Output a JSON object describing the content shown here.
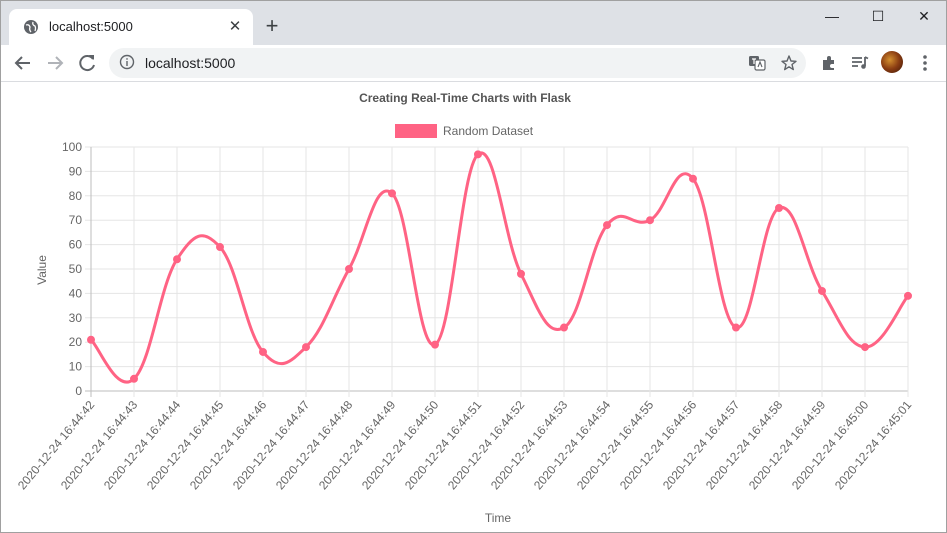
{
  "browser": {
    "tab_title": "localhost:5000",
    "tab_close_glyph": "✕",
    "new_tab_glyph": "+",
    "url": "localhost:5000",
    "window_controls": {
      "minimize": "—",
      "maximize": "☐",
      "close": "✕"
    },
    "icons": [
      "globe-icon",
      "close-icon",
      "plus-icon",
      "back-icon",
      "forward-icon",
      "reload-icon",
      "info-icon",
      "translate-icon",
      "star-icon",
      "extensions-icon",
      "media-queue-icon",
      "avatar",
      "menu-icon"
    ]
  },
  "colors": {
    "series": "#ff6384",
    "grid": "#e5e5e5",
    "text": "#666666",
    "title": "#555555"
  },
  "chart_data": {
    "type": "line",
    "title": "Creating Real-Time Charts with Flask",
    "xlabel": "Time",
    "ylabel": "Value",
    "ylim": [
      0,
      100
    ],
    "yticks": [
      0,
      10,
      20,
      30,
      40,
      50,
      60,
      70,
      80,
      90,
      100
    ],
    "grid": true,
    "legend_position": "top",
    "categories": [
      "2020-12-24 16:44:42",
      "2020-12-24 16:44:43",
      "2020-12-24 16:44:44",
      "2020-12-24 16:44:45",
      "2020-12-24 16:44:46",
      "2020-12-24 16:44:47",
      "2020-12-24 16:44:48",
      "2020-12-24 16:44:49",
      "2020-12-24 16:44:50",
      "2020-12-24 16:44:51",
      "2020-12-24 16:44:52",
      "2020-12-24 16:44:53",
      "2020-12-24 16:44:54",
      "2020-12-24 16:44:55",
      "2020-12-24 16:44:56",
      "2020-12-24 16:44:57",
      "2020-12-24 16:44:58",
      "2020-12-24 16:44:59",
      "2020-12-24 16:45:00",
      "2020-12-24 16:45:01"
    ],
    "series": [
      {
        "name": "Random Dataset",
        "color": "#ff6384",
        "values": [
          21,
          5,
          54,
          59,
          16,
          18,
          50,
          81,
          19,
          97,
          48,
          26,
          68,
          70,
          87,
          26,
          75,
          41,
          18,
          39
        ]
      }
    ]
  }
}
